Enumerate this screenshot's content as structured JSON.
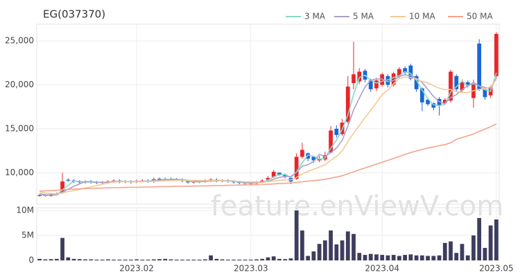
{
  "chart_data": [
    {
      "type": "candlestick",
      "title": "EG(037370)",
      "watermark": "feature.enViewV.com",
      "categories": [
        null,
        null,
        null,
        null,
        null,
        null,
        null,
        null,
        null,
        null,
        null,
        null,
        null,
        null,
        null,
        null,
        null,
        null,
        null,
        null,
        null,
        null,
        null,
        null,
        null,
        null,
        null,
        null,
        null,
        null,
        null,
        null,
        null,
        null,
        null,
        null,
        null,
        null,
        null,
        null,
        null,
        null,
        null,
        null,
        null,
        null,
        null,
        null,
        null,
        null,
        null,
        null,
        null,
        null,
        null,
        null,
        null,
        null,
        null,
        null,
        null,
        null,
        null,
        null,
        null,
        null,
        null,
        null,
        null,
        null,
        null,
        null,
        null,
        null,
        null,
        null,
        null,
        null,
        null,
        null,
        null
      ],
      "open": [
        7350,
        7450,
        7350,
        7500,
        7700,
        9200,
        9100,
        9000,
        8900,
        9000,
        8900,
        8850,
        8900,
        9000,
        9100,
        8950,
        9000,
        8950,
        9050,
        9100,
        9000,
        9300,
        9200,
        9300,
        9250,
        9200,
        9050,
        8900,
        8950,
        9000,
        9100,
        9200,
        9050,
        9100,
        9000,
        8900,
        8850,
        8750,
        8800,
        8950,
        9200,
        9500,
        10000,
        9800,
        9400,
        9300,
        11800,
        12200,
        11800,
        11400,
        11500,
        12300,
        15000,
        14400,
        15800,
        20200,
        20400,
        21600,
        20500,
        19600,
        20000,
        21000,
        20000,
        21000,
        21900,
        22200,
        21000,
        19600,
        18300,
        17900,
        18400,
        17900,
        18200,
        21000,
        19400,
        20300,
        18500,
        24700,
        19500,
        18800,
        21000
      ],
      "high": [
        7550,
        7550,
        7650,
        7750,
        10000,
        9350,
        9250,
        9150,
        9100,
        9150,
        9050,
        9050,
        9150,
        9250,
        9250,
        9150,
        9150,
        9200,
        9250,
        9250,
        9450,
        9450,
        9450,
        9450,
        9400,
        9350,
        9200,
        9100,
        9150,
        9250,
        9400,
        9350,
        9250,
        9250,
        9150,
        9050,
        9000,
        8950,
        9050,
        9250,
        9600,
        10300,
        10000,
        9900,
        9450,
        12200,
        13400,
        12300,
        11900,
        11900,
        12400,
        15300,
        15400,
        16100,
        21000,
        24900,
        21900,
        21800,
        20700,
        20800,
        21400,
        21200,
        21500,
        22000,
        22100,
        22400,
        21200,
        19700,
        18500,
        18000,
        18600,
        18500,
        21700,
        21200,
        20600,
        20500,
        20600,
        25200,
        19700,
        19900,
        26000
      ],
      "low": [
        7250,
        7250,
        7250,
        7400,
        7600,
        8950,
        8850,
        8750,
        8750,
        8750,
        8700,
        8700,
        8750,
        8850,
        8800,
        8800,
        8750,
        8800,
        8900,
        8850,
        8850,
        9050,
        9050,
        9100,
        9050,
        8900,
        8750,
        8750,
        8800,
        8850,
        8950,
        8900,
        8900,
        8850,
        8750,
        8700,
        8600,
        8600,
        8650,
        8800,
        9050,
        9400,
        9650,
        9350,
        8700,
        9200,
        11600,
        11300,
        11100,
        11200,
        11300,
        12200,
        14000,
        14200,
        15600,
        19500,
        20100,
        20300,
        19200,
        19300,
        19800,
        19700,
        19800,
        20800,
        21100,
        20500,
        19200,
        17000,
        17600,
        17100,
        16500,
        17700,
        18000,
        19200,
        19200,
        19700,
        17400,
        19300,
        18300,
        18500,
        20800
      ],
      "close": [
        7450,
        7350,
        7550,
        7600,
        9000,
        9100,
        9000,
        8900,
        8950,
        8900,
        8850,
        8900,
        9000,
        9100,
        8950,
        9000,
        8900,
        9050,
        9100,
        9000,
        9250,
        9200,
        9300,
        9250,
        9200,
        9050,
        8900,
        8950,
        9000,
        9100,
        9200,
        9050,
        9100,
        9000,
        8900,
        8850,
        8750,
        8800,
        8900,
        9100,
        9400,
        10100,
        9800,
        9500,
        9000,
        11800,
        12600,
        11600,
        11400,
        11600,
        12000,
        14800,
        14300,
        15700,
        19800,
        21200,
        21500,
        20600,
        19500,
        20500,
        21200,
        20000,
        21300,
        21800,
        21400,
        20700,
        19500,
        18000,
        17800,
        17400,
        17700,
        18300,
        21500,
        19500,
        20300,
        19900,
        20200,
        19500,
        18600,
        19700,
        25800
      ],
      "up_color": "#e8262a",
      "down_color": "#1a66d6",
      "series": [
        {
          "name": "3 MA",
          "color": "#86d8cb",
          "values": [
            7500,
            7420,
            7450,
            7500,
            8050,
            8570,
            9030,
            9000,
            8950,
            8920,
            8900,
            8880,
            8920,
            9000,
            9020,
            9020,
            8950,
            8980,
            9020,
            9050,
            9120,
            9150,
            9250,
            9250,
            9250,
            9170,
            9050,
            8970,
            8950,
            9020,
            9100,
            9120,
            9120,
            9050,
            9000,
            8920,
            8830,
            8800,
            8820,
            8930,
            9130,
            9530,
            9770,
            9800,
            9430,
            10100,
            11130,
            12000,
            11870,
            11530,
            11670,
            12800,
            13700,
            14930,
            16600,
            18900,
            20830,
            21100,
            20530,
            20200,
            20400,
            20570,
            20830,
            21030,
            21500,
            21300,
            20530,
            19400,
            18430,
            17730,
            17630,
            17800,
            19170,
            19770,
            20430,
            19900,
            20130,
            19870,
            19430,
            19270,
            21370
          ]
        },
        {
          "name": "5 MA",
          "color": "#ab9fcc",
          "values": [
            7600,
            7500,
            7450,
            7480,
            7790,
            8120,
            8450,
            8720,
            9000,
            8970,
            8920,
            8900,
            8910,
            8950,
            8960,
            8990,
            8990,
            9000,
            9000,
            9010,
            9060,
            9120,
            9170,
            9200,
            9240,
            9200,
            9140,
            9060,
            9020,
            9000,
            9040,
            9060,
            9090,
            9090,
            9050,
            8980,
            8900,
            8840,
            8840,
            8880,
            8990,
            9260,
            9460,
            9580,
            9560,
            10040,
            10740,
            10900,
            11280,
            12080,
            11840,
            12280,
            12820,
            13680,
            15320,
            17160,
            18500,
            19760,
            20520,
            20660,
            20660,
            20360,
            20500,
            20960,
            21140,
            21040,
            20740,
            20280,
            19480,
            18680,
            18080,
            17840,
            18540,
            18880,
            19440,
            19900,
            20280,
            19880,
            19700,
            19580,
            20760
          ]
        },
        {
          "name": "10 MA",
          "color": "#f3c893",
          "values": [
            7800,
            7700,
            7620,
            7580,
            7690,
            7860,
            7950,
            8100,
            8250,
            8380,
            8520,
            8680,
            8810,
            8960,
            8960,
            8970,
            8950,
            8960,
            8980,
            8990,
            9020,
            9050,
            9080,
            9100,
            9120,
            9130,
            9130,
            9110,
            9110,
            9100,
            9100,
            9080,
            9060,
            9040,
            9030,
            9010,
            8970,
            8950,
            8930,
            8940,
            8960,
            9060,
            9130,
            9180,
            9180,
            9460,
            9850,
            10140,
            10390,
            10640,
            10900,
            11400,
            11850,
            12470,
            13550,
            14490,
            15380,
            16280,
            17090,
            17980,
            18900,
            19420,
            20120,
            20730,
            20890,
            20840,
            20640,
            20390,
            20210,
            19900,
            19620,
            19450,
            19470,
            19230,
            19120,
            19110,
            19330,
            19480,
            19560,
            19790,
            20600
          ]
        },
        {
          "name": "50 MA",
          "color": "#f4a28c",
          "values": [
            7900,
            7930,
            7960,
            7990,
            8050,
            8100,
            8130,
            8160,
            8190,
            8210,
            8230,
            8250,
            8270,
            8290,
            8300,
            8320,
            8330,
            8340,
            8350,
            8370,
            8380,
            8400,
            8410,
            8430,
            8440,
            8450,
            8460,
            8470,
            8480,
            8500,
            8510,
            8530,
            8540,
            8560,
            8570,
            8590,
            8600,
            8610,
            8630,
            8650,
            8680,
            8720,
            8760,
            8790,
            8820,
            8880,
            8960,
            9030,
            9100,
            9170,
            9250,
            9380,
            9500,
            9650,
            9870,
            10100,
            10330,
            10540,
            10750,
            10970,
            11190,
            11400,
            11620,
            11850,
            12080,
            12290,
            12480,
            12640,
            12800,
            12940,
            13070,
            13200,
            13400,
            13800,
            14000,
            14200,
            14400,
            14700,
            14950,
            15250,
            15550
          ]
        }
      ],
      "xlim": [
        -0.5,
        80.5
      ],
      "xticks": [
        {
          "value": 17,
          "label": "2023.02"
        },
        {
          "value": 37,
          "label": "2023.03"
        },
        {
          "value": 60,
          "label": "2023.04"
        },
        {
          "value": 80,
          "label": "2023.05"
        }
      ],
      "ylim": [
        6400,
        26900
      ],
      "yticks": [
        {
          "value": 10000,
          "label": "10,000"
        },
        {
          "value": 15000,
          "label": "15,000"
        },
        {
          "value": 20000,
          "label": "20,000"
        },
        {
          "value": 25000,
          "label": "25,000"
        }
      ],
      "grid": true
    },
    {
      "type": "bar",
      "color": "#3d3d5e",
      "xlim": [
        -0.5,
        80.5
      ],
      "values": [
        300000,
        200000,
        250000,
        300000,
        4500000,
        600000,
        300000,
        250000,
        200000,
        200000,
        150000,
        150000,
        200000,
        150000,
        150000,
        150000,
        150000,
        200000,
        150000,
        150000,
        200000,
        250000,
        300000,
        200000,
        150000,
        150000,
        150000,
        150000,
        150000,
        200000,
        1000000,
        300000,
        200000,
        150000,
        150000,
        150000,
        150000,
        150000,
        200000,
        300000,
        600000,
        800000,
        300000,
        250000,
        400000,
        10000000,
        6000000,
        900000,
        1800000,
        3300000,
        4000000,
        6000000,
        3200000,
        4000000,
        5800000,
        5300000,
        1500000,
        1100000,
        1300000,
        1200000,
        1100000,
        1000000,
        1100000,
        900000,
        1100000,
        1200000,
        1000000,
        1000000,
        900000,
        900000,
        1000000,
        3500000,
        3800000,
        1500000,
        3300000,
        1000000,
        5000000,
        8500000,
        2500000,
        7000000,
        8200000
      ],
      "ylim": [
        0,
        10550000
      ],
      "yticks": [
        0,
        {
          "value": 5000000,
          "label": "5M"
        },
        {
          "value": 10000000,
          "label": "10M"
        }
      ],
      "grid": true
    }
  ]
}
